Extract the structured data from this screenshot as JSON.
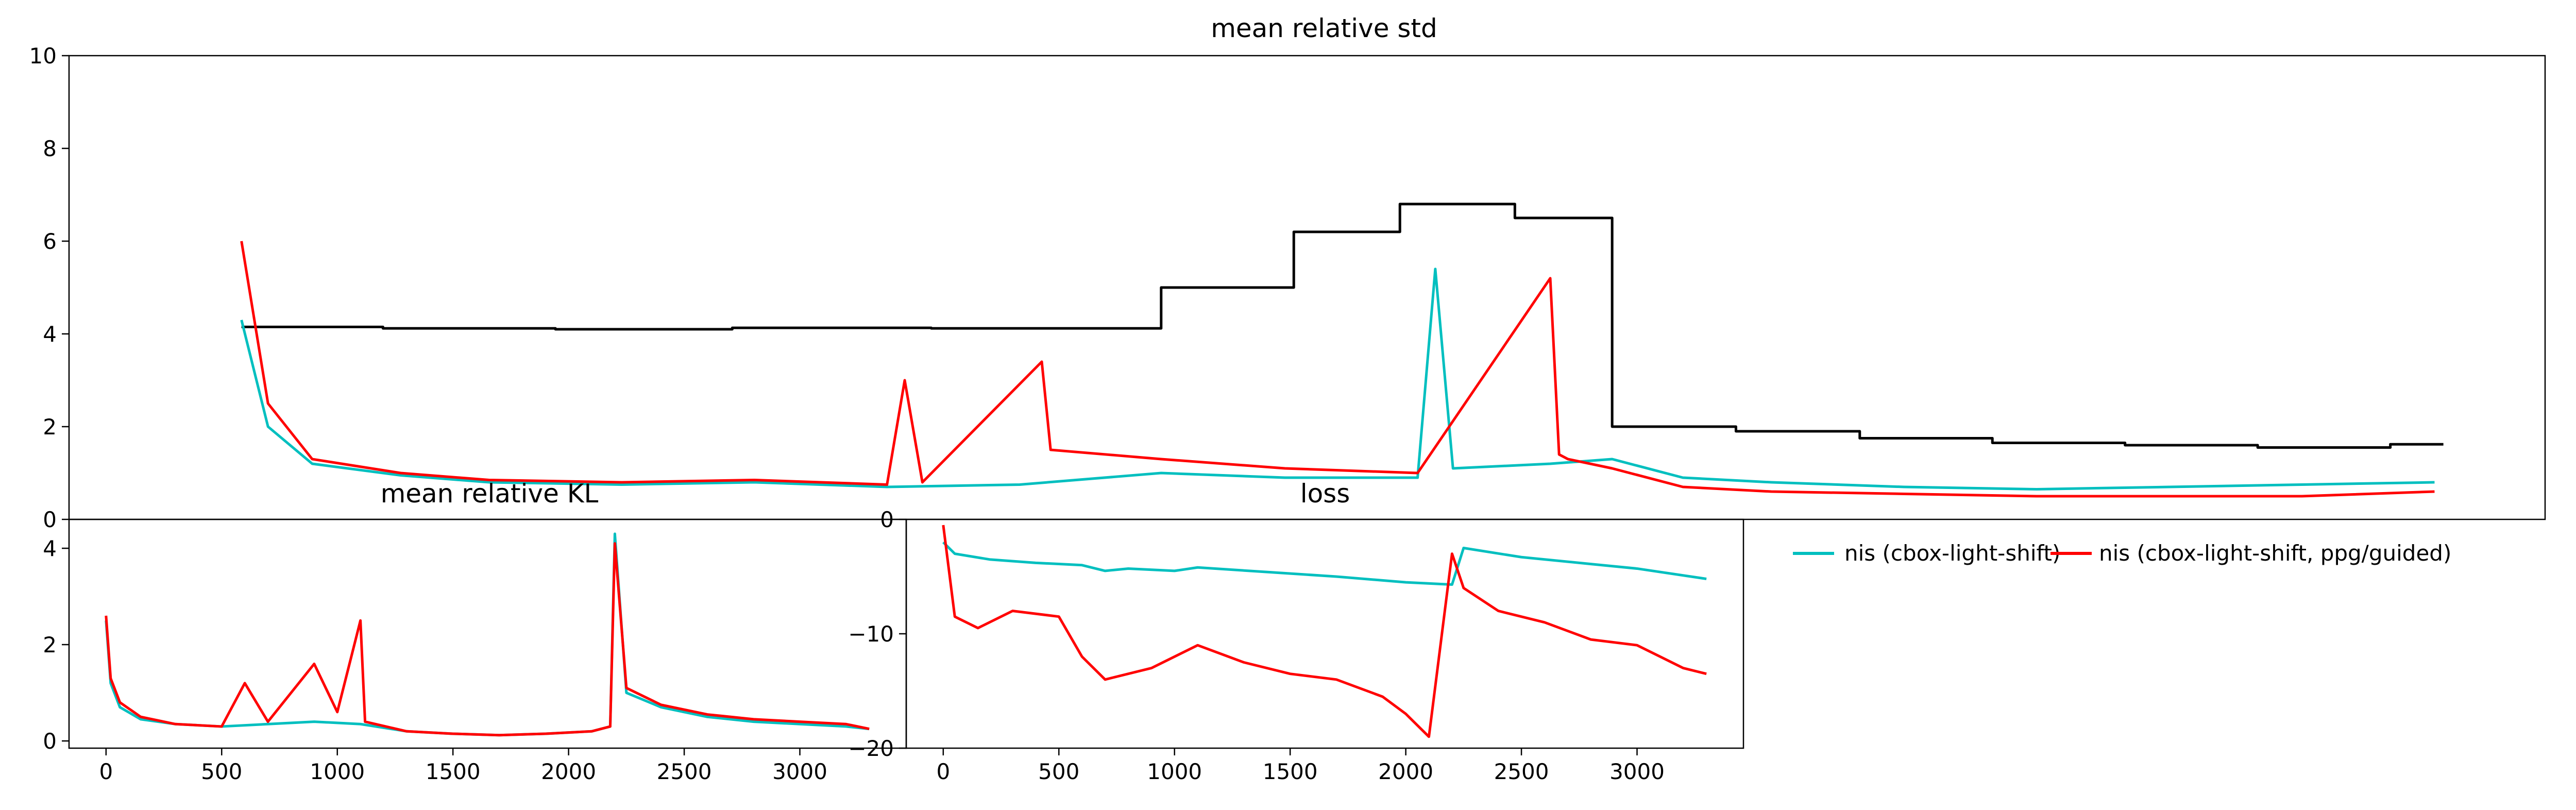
{
  "colors": {
    "nis": "#00BFBF",
    "guided": "#FF0000",
    "black": "#000000"
  },
  "legend": [
    {
      "label": "nis (cbox-light-shift)",
      "color": "#00BFBF"
    },
    {
      "label": "nis (cbox-light-shift, ppg/guided)",
      "color": "#FF0000"
    }
  ],
  "chart_data": [
    {
      "type": "line",
      "title": "mean relative std",
      "xlim": [
        -50,
        5550
      ],
      "ylim": [
        0,
        10
      ],
      "yticks": [
        "0",
        "2",
        "4",
        "6",
        "8",
        "10"
      ],
      "xticks": [],
      "series": [
        {
          "name": "",
          "color": "#000000",
          "steps": [
            [
              340,
              4.15
            ],
            [
              660,
              4.12
            ],
            [
              1050,
              4.1
            ],
            [
              1450,
              4.13
            ],
            [
              1900,
              4.12
            ],
            [
              2420,
              5.0
            ],
            [
              2720,
              6.2
            ],
            [
              2960,
              6.8
            ],
            [
              3220,
              6.5
            ],
            [
              3440,
              2.0
            ],
            [
              3720,
              1.9
            ],
            [
              4000,
              1.75
            ],
            [
              4300,
              1.65
            ],
            [
              4600,
              1.6
            ],
            [
              4900,
              1.55
            ],
            [
              5200,
              1.62
            ]
          ],
          "x": [
            340,
            660,
            1050,
            1450,
            1900,
            2420,
            2720,
            2960,
            3220,
            3440,
            3720,
            4000,
            4300,
            4600,
            4900,
            5200
          ],
          "values": [
            4.15,
            4.12,
            4.1,
            4.13,
            4.12,
            5.0,
            6.2,
            6.8,
            6.5,
            2.0,
            1.9,
            1.75,
            1.65,
            1.6,
            1.55,
            1.62
          ]
        },
        {
          "name": "nis (cbox-light-shift)",
          "color": "#00BFBF",
          "x": [
            340,
            400,
            500,
            700,
            900,
            1200,
            1500,
            1800,
            2100,
            2420,
            2700,
            3000,
            3040,
            3080,
            3300,
            3440,
            3600,
            3800,
            4100,
            4400,
            4700,
            5000,
            5300
          ],
          "values": [
            4.3,
            2.0,
            1.2,
            0.95,
            0.8,
            0.75,
            0.8,
            0.7,
            0.75,
            1.0,
            0.9,
            0.9,
            5.4,
            1.1,
            1.2,
            1.3,
            0.9,
            0.8,
            0.7,
            0.65,
            0.7,
            0.75,
            0.8
          ]
        },
        {
          "name": "nis (cbox-light-shift, ppg/guided)",
          "color": "#FF0000",
          "x": [
            340,
            400,
            500,
            700,
            900,
            1200,
            1500,
            1800,
            1840,
            1880,
            2150,
            2170,
            2420,
            2700,
            3000,
            3300,
            3320,
            3340,
            3440,
            3600,
            3800,
            4100,
            4400,
            4700,
            5000,
            5300
          ],
          "values": [
            6.0,
            2.5,
            1.3,
            1.0,
            0.85,
            0.8,
            0.85,
            0.75,
            3.0,
            0.8,
            3.4,
            1.5,
            1.3,
            1.1,
            1.0,
            5.2,
            1.4,
            1.3,
            1.1,
            0.7,
            0.6,
            0.55,
            0.5,
            0.5,
            0.5,
            0.6
          ]
        }
      ]
    },
    {
      "type": "line",
      "title": "mean relative KL",
      "xlim": [
        -160,
        3460
      ],
      "ylim": [
        -0.15,
        4.6
      ],
      "xticks": [
        "0",
        "500",
        "1000",
        "1500",
        "2000",
        "2500",
        "3000"
      ],
      "yticks": [
        "0",
        "2",
        "4"
      ],
      "series": [
        {
          "name": "nis (cbox-light-shift)",
          "color": "#00BFBF",
          "x": [
            0,
            20,
            60,
            150,
            300,
            500,
            700,
            900,
            1100,
            1300,
            1500,
            1700,
            1900,
            2100,
            2180,
            2200,
            2250,
            2400,
            2600,
            2800,
            3000,
            3200,
            3300
          ],
          "values": [
            2.5,
            1.2,
            0.7,
            0.45,
            0.35,
            0.3,
            0.35,
            0.4,
            0.35,
            0.2,
            0.15,
            0.12,
            0.15,
            0.2,
            0.3,
            4.3,
            1.0,
            0.7,
            0.5,
            0.4,
            0.35,
            0.3,
            0.25
          ]
        },
        {
          "name": "nis (cbox-light-shift, ppg/guided)",
          "color": "#FF0000",
          "x": [
            0,
            20,
            60,
            150,
            300,
            500,
            600,
            700,
            900,
            1000,
            1100,
            1120,
            1300,
            1500,
            1700,
            1900,
            2100,
            2180,
            2200,
            2250,
            2400,
            2600,
            2800,
            3000,
            3200,
            3300
          ],
          "values": [
            2.6,
            1.3,
            0.8,
            0.5,
            0.35,
            0.3,
            1.2,
            0.4,
            1.6,
            0.6,
            2.5,
            0.4,
            0.2,
            0.15,
            0.12,
            0.15,
            0.2,
            0.3,
            4.1,
            1.1,
            0.75,
            0.55,
            0.45,
            0.4,
            0.35,
            0.25
          ]
        }
      ]
    },
    {
      "type": "line",
      "title": "loss",
      "xlim": [
        -160,
        3460
      ],
      "ylim": [
        -20,
        0
      ],
      "xticks": [
        "0",
        "500",
        "1000",
        "1500",
        "2000",
        "2500",
        "3000"
      ],
      "yticks": [
        "0",
        "−10",
        "−20"
      ],
      "series": [
        {
          "name": "nis (cbox-light-shift)",
          "color": "#00BFBF",
          "x": [
            0,
            50,
            200,
            400,
            600,
            700,
            800,
            1000,
            1100,
            1400,
            1700,
            2000,
            2200,
            2250,
            2500,
            2800,
            3000,
            3300
          ],
          "values": [
            -2.0,
            -3.0,
            -3.5,
            -3.8,
            -4.0,
            -4.5,
            -4.3,
            -4.5,
            -4.2,
            -4.6,
            -5.0,
            -5.5,
            -5.7,
            -2.5,
            -3.3,
            -3.9,
            -4.3,
            -5.2
          ]
        },
        {
          "name": "nis (cbox-light-shift, ppg/guided)",
          "color": "#FF0000",
          "x": [
            0,
            50,
            150,
            300,
            500,
            600,
            700,
            900,
            1100,
            1300,
            1500,
            1700,
            1900,
            2000,
            2100,
            2200,
            2250,
            2400,
            2600,
            2800,
            3000,
            3200,
            3300
          ],
          "values": [
            -0.5,
            -8.5,
            -9.5,
            -8.0,
            -8.5,
            -12.0,
            -14.0,
            -13.0,
            -11.0,
            -12.5,
            -13.5,
            -14.0,
            -15.5,
            -17.0,
            -19.0,
            -3.0,
            -6.0,
            -8.0,
            -9.0,
            -10.5,
            -11.0,
            -13.0,
            -13.5
          ]
        }
      ]
    }
  ]
}
